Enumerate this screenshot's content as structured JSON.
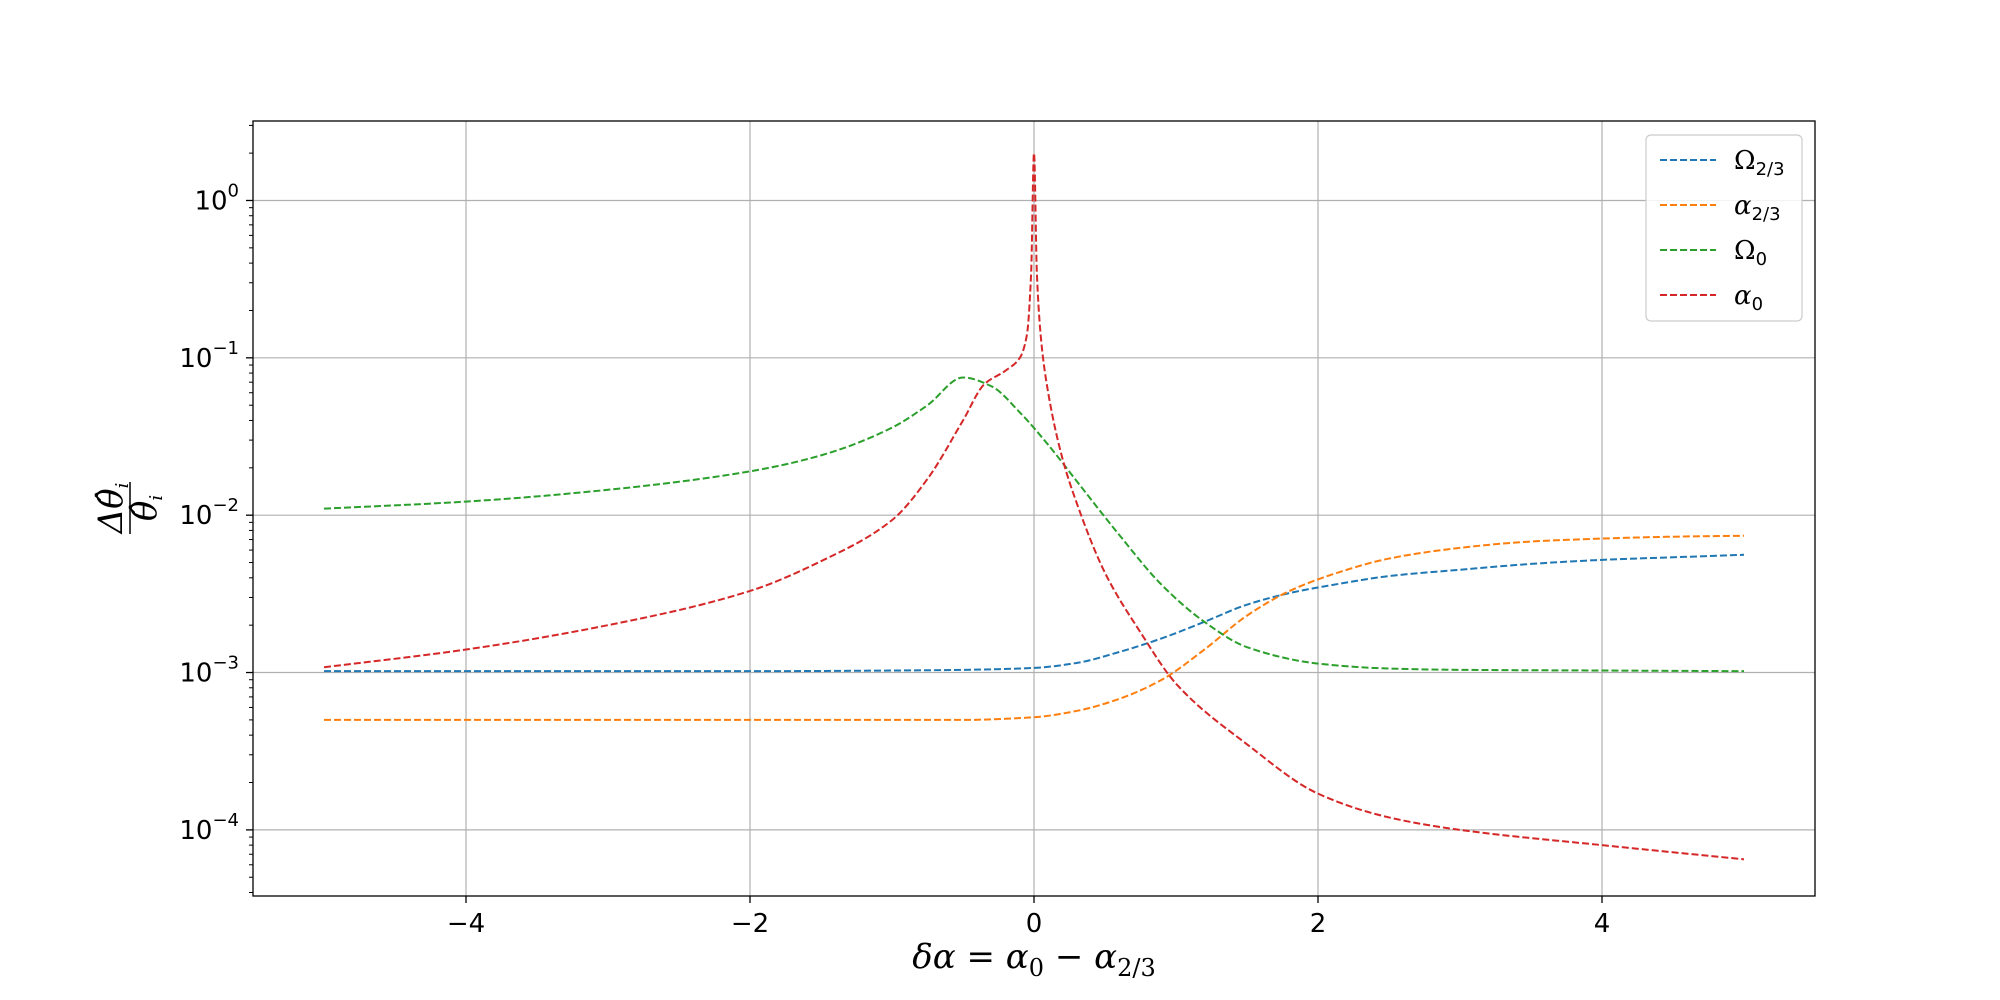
{
  "chart_data": {
    "type": "line",
    "xlabel": {
      "prefix": "δα = α",
      "sub1": "0",
      "mid": " − α",
      "sub2": "2/3"
    },
    "ylabel": {
      "numerator": "Δθ̂",
      "numerator_sub": "i",
      "denominator": "θ̂",
      "denominator_sub": "i"
    },
    "xscale": "linear",
    "yscale": "log",
    "xlim": [
      -5.5,
      5.5
    ],
    "ylim": [
      3.8e-05,
      3.2
    ],
    "grid": true,
    "legend_position": "top-right",
    "x_ticks": [
      {
        "value": -4,
        "label": "−4"
      },
      {
        "value": -2,
        "label": "−2"
      },
      {
        "value": 0,
        "label": "0"
      },
      {
        "value": 2,
        "label": "2"
      },
      {
        "value": 4,
        "label": "4"
      }
    ],
    "y_ticks": [
      {
        "value": 1,
        "base": "10",
        "exp": "0"
      },
      {
        "value": 0.1,
        "base": "10",
        "exp": "−1"
      },
      {
        "value": 0.01,
        "base": "10",
        "exp": "−2"
      },
      {
        "value": 0.001,
        "base": "10",
        "exp": "−3"
      },
      {
        "value": 0.0001,
        "base": "10",
        "exp": "−4"
      }
    ],
    "series": [
      {
        "name": "Ω",
        "name_sub": "2/3",
        "color": "#1f77b4",
        "x": [
          -5,
          -4,
          -3,
          -2,
          -1,
          -0.5,
          0,
          0.3,
          0.6,
          0.9,
          1.2,
          1.5,
          1.8,
          2.1,
          2.5,
          3,
          3.5,
          4,
          4.5,
          5
        ],
        "y": [
          0.00102,
          0.00102,
          0.00102,
          0.00102,
          0.00103,
          0.00104,
          0.00107,
          0.00115,
          0.00135,
          0.00165,
          0.0021,
          0.0027,
          0.0032,
          0.0036,
          0.0041,
          0.0045,
          0.0049,
          0.0052,
          0.0054,
          0.0056
        ]
      },
      {
        "name": "α",
        "name_sub": "2/3",
        "color": "#ff7f0e",
        "x": [
          -5,
          -4,
          -3,
          -2,
          -1,
          -0.5,
          0,
          0.3,
          0.6,
          0.9,
          1.2,
          1.5,
          1.8,
          2.1,
          2.5,
          3,
          3.5,
          4,
          4.5,
          5
        ],
        "y": [
          0.0005,
          0.0005,
          0.0005,
          0.0005,
          0.0005,
          0.0005,
          0.00052,
          0.00057,
          0.00068,
          0.0009,
          0.0014,
          0.0023,
          0.0033,
          0.0042,
          0.0053,
          0.0062,
          0.0068,
          0.0071,
          0.0073,
          0.0074
        ]
      },
      {
        "name": "Ω",
        "name_sub": "0",
        "color": "#2ca02c",
        "x": [
          -5,
          -4,
          -3,
          -2,
          -1.5,
          -1,
          -0.75,
          -0.5,
          -0.3,
          -0.1,
          0.1,
          0.3,
          0.6,
          0.9,
          1.2,
          1.5,
          2,
          2.5,
          3,
          4,
          5
        ],
        "y": [
          0.011,
          0.0122,
          0.0145,
          0.019,
          0.024,
          0.036,
          0.05,
          0.075,
          0.066,
          0.045,
          0.028,
          0.0165,
          0.0075,
          0.0036,
          0.0021,
          0.00145,
          0.00114,
          0.00106,
          0.00104,
          0.00103,
          0.00102
        ]
      },
      {
        "name": "α",
        "name_sub": "0",
        "color": "#d62728",
        "x": [
          -5,
          -4,
          -3,
          -2,
          -1.5,
          -1,
          -0.75,
          -0.5,
          -0.35,
          -0.2,
          -0.1,
          -0.05,
          -0.02,
          0,
          0.02,
          0.05,
          0.1,
          0.2,
          0.3,
          0.5,
          0.75,
          1,
          1.5,
          2,
          2.5,
          3,
          4,
          5
        ],
        "y": [
          0.00108,
          0.0014,
          0.002,
          0.0033,
          0.0051,
          0.0093,
          0.017,
          0.04,
          0.068,
          0.083,
          0.1,
          0.14,
          0.35,
          2.0,
          0.35,
          0.13,
          0.06,
          0.023,
          0.012,
          0.0043,
          0.0018,
          0.00085,
          0.00035,
          0.00017,
          0.00012,
          0.0001,
          8e-05,
          6.5e-05
        ]
      }
    ]
  }
}
